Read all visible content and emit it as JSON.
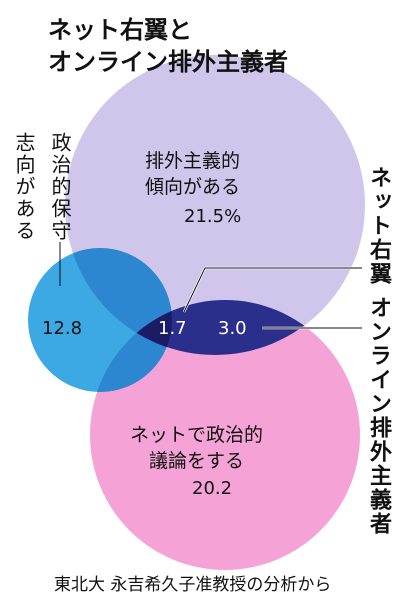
{
  "header": {
    "title_lines": [
      "ネット右翼と",
      "オンライン排外主義者"
    ]
  },
  "circles": [
    {
      "label_lines": [
        "排外主義的",
        "傾向がある"
      ],
      "value": "21.5%"
    },
    {
      "label_lines": [
        "政治的保守",
        "志向がある"
      ],
      "value": "12.8"
    },
    {
      "label_lines": [
        "ネットで政治的",
        "議論をする"
      ],
      "value": "20.2"
    }
  ],
  "overlaps": [
    {
      "label": "ネット右翼",
      "value": "1.7"
    },
    {
      "label": "オンライン排外主義者",
      "value": "3.0"
    }
  ],
  "footer": {
    "source": "東北大 永吉希久子准教授の分析から"
  }
}
